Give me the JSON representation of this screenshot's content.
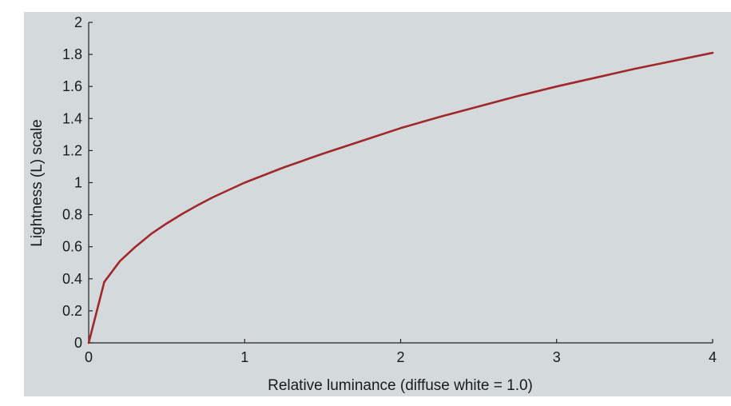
{
  "chart_data": {
    "type": "line",
    "title": "",
    "xlabel": "Relative luminance (diffuse white = 1.0)",
    "ylabel": "Lightness (L) scale",
    "xlim": [
      0,
      4
    ],
    "ylim": [
      0,
      2
    ],
    "x_ticks": [
      "0",
      "1",
      "2",
      "3",
      "4"
    ],
    "y_ticks": [
      "0",
      "0.2",
      "0.4",
      "0.6",
      "0.8",
      "1",
      "1.2",
      "1.4",
      "1.6",
      "1.8",
      "2"
    ],
    "grid": false,
    "legend": "none",
    "series": [
      {
        "color": "#a0282a",
        "x": [
          0,
          0.1,
          0.2,
          0.3,
          0.4,
          0.5,
          0.6,
          0.7,
          0.8,
          0.9,
          1.0,
          1.25,
          1.5,
          1.75,
          2.0,
          2.25,
          2.5,
          2.75,
          3.0,
          3.25,
          3.5,
          3.75,
          4.0
        ],
        "y": [
          0,
          0.38,
          0.51,
          0.6,
          0.68,
          0.745,
          0.805,
          0.86,
          0.91,
          0.955,
          1.0,
          1.095,
          1.18,
          1.26,
          1.34,
          1.41,
          1.475,
          1.54,
          1.6,
          1.655,
          1.71,
          1.76,
          1.81
        ]
      }
    ]
  }
}
